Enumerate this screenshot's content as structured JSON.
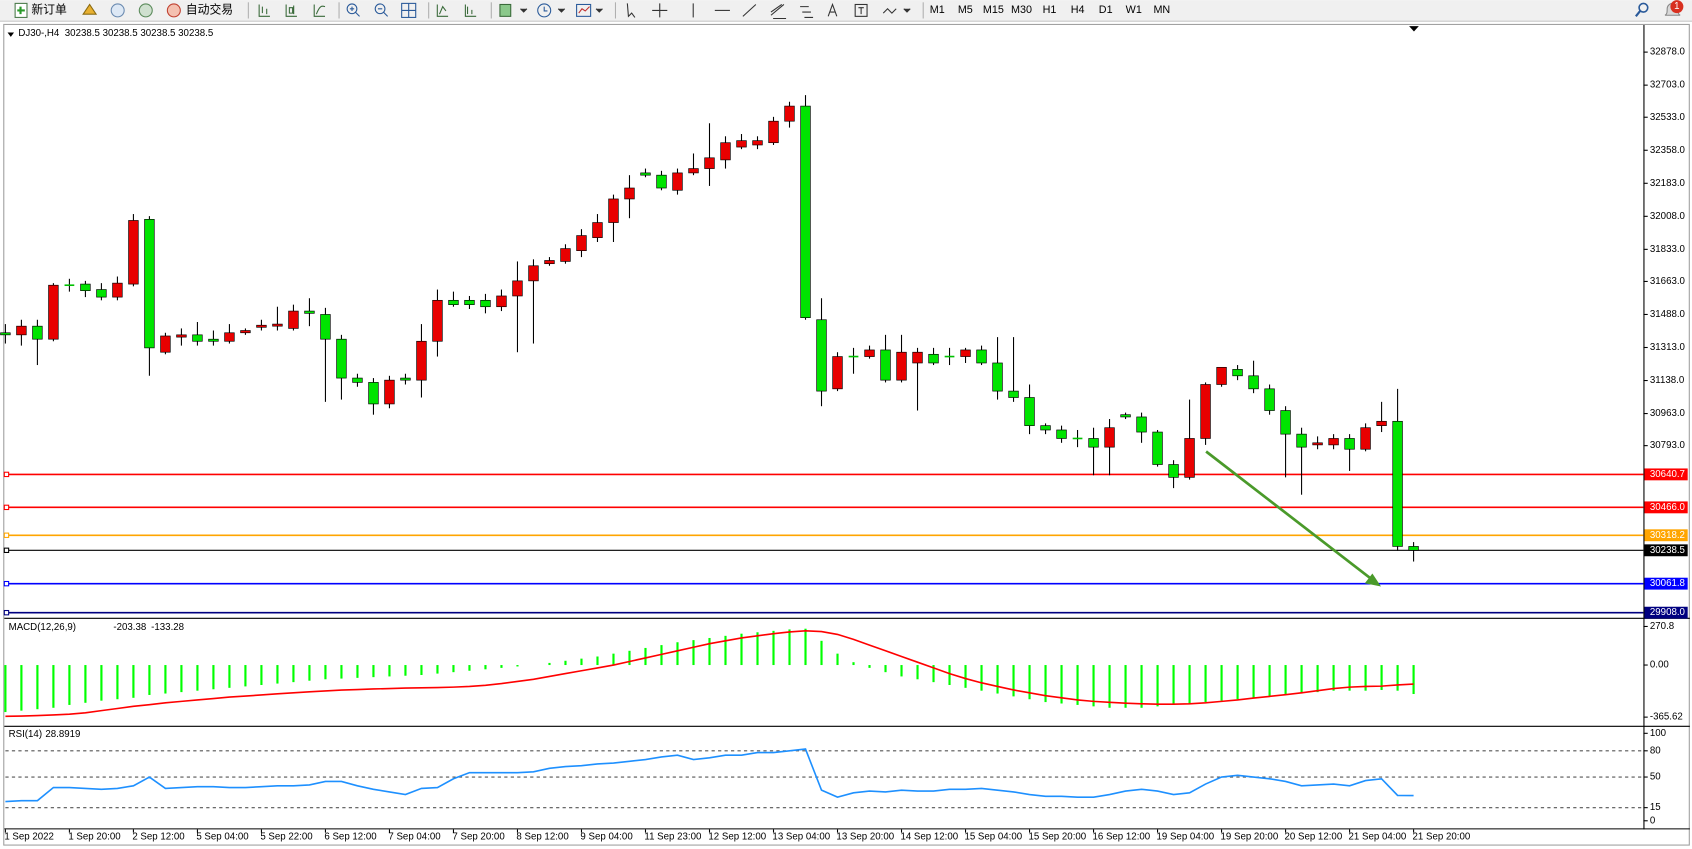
{
  "toolbar": {
    "buttons": [
      "新订单",
      "自动交易"
    ],
    "timeframes": [
      "M1",
      "M5",
      "M15",
      "M30",
      "H1",
      "H4",
      "D1",
      "W1",
      "MN"
    ],
    "badge": "1"
  },
  "chart_data": [
    {
      "type": "candlestick",
      "title": "DJ30-,H4",
      "quote": [
        30238.5,
        30238.5,
        30238.5,
        30238.5
      ],
      "up_color": "#e80000",
      "down_color": "#00e400",
      "x_labels": [
        "1 Sep 2022",
        "1 Sep 20:00",
        "2 Sep 12:00",
        "5 Sep 04:00",
        "5 Sep 22:00",
        "6 Sep 12:00",
        "7 Sep 04:00",
        "7 Sep 20:00",
        "8 Sep 12:00",
        "9 Sep 04:00",
        "11 Sep 23:00",
        "12 Sep 12:00",
        "13 Sep 04:00",
        "13 Sep 20:00",
        "14 Sep 12:00",
        "15 Sep 04:00",
        "15 Sep 20:00",
        "16 Sep 12:00",
        "19 Sep 04:00",
        "19 Sep 20:00",
        "20 Sep 12:00",
        "21 Sep 04:00",
        "21 Sep 20:00"
      ],
      "open": [
        31391,
        31380,
        31426,
        31357,
        31643,
        31649,
        31620,
        31580,
        31649,
        31992,
        31288,
        31368,
        31380,
        31357,
        31346,
        31391,
        31420,
        31426,
        31414,
        31506,
        31488,
        31357,
        31151,
        31128,
        31014,
        31151,
        31140,
        31346,
        31563,
        31563,
        31563,
        31529,
        31586,
        31666,
        31757,
        31769,
        31826,
        31895,
        31975,
        32100,
        32238,
        32226,
        32146,
        32238,
        32261,
        32307,
        32375,
        32386,
        32398,
        32512,
        32592,
        31460,
        31094,
        31265,
        31265,
        31300,
        31140,
        31231,
        31277,
        31265,
        31265,
        31300,
        31231,
        31082,
        31048,
        30899,
        30876,
        30831,
        30831,
        30785,
        30957,
        30945,
        30865,
        30693,
        30625,
        30831,
        31117,
        31197,
        31163,
        31094,
        30979,
        30854,
        30797,
        30797,
        30831,
        30774,
        30899,
        30922,
        30259
      ],
      "high": [
        31437,
        31460,
        31460,
        31654,
        31677,
        31666,
        31654,
        31689,
        32020,
        32009,
        31391,
        31414,
        31448,
        31403,
        31437,
        31414,
        31460,
        31529,
        31540,
        31574,
        31523,
        31380,
        31174,
        31151,
        31163,
        31174,
        31437,
        31620,
        31609,
        31586,
        31597,
        31620,
        31769,
        31780,
        31792,
        31860,
        31940,
        32020,
        32123,
        32226,
        32261,
        32249,
        32261,
        32341,
        32501,
        32432,
        32444,
        32432,
        32535,
        32615,
        32650,
        31574,
        31288,
        31311,
        31323,
        31380,
        31380,
        31311,
        31311,
        31311,
        31311,
        31323,
        31368,
        31368,
        31117,
        30911,
        30899,
        30876,
        30888,
        30934,
        30968,
        30968,
        30876,
        30716,
        31037,
        31128,
        31208,
        31220,
        31243,
        31117,
        31002,
        30888,
        30842,
        30854,
        30854,
        30911,
        31025,
        31094,
        30282
      ],
      "low": [
        31334,
        31323,
        31220,
        31346,
        31609,
        31580,
        31563,
        31563,
        31637,
        31163,
        31277,
        31323,
        31323,
        31323,
        31334,
        31380,
        31403,
        31403,
        31403,
        31426,
        31025,
        31037,
        31105,
        30957,
        30991,
        31117,
        31048,
        31265,
        31529,
        31517,
        31494,
        31506,
        31288,
        31334,
        31746,
        31757,
        31792,
        31872,
        31872,
        31998,
        32215,
        32146,
        32123,
        32226,
        32169,
        32261,
        32364,
        32364,
        32386,
        32478,
        31460,
        31002,
        31082,
        31174,
        31254,
        31128,
        31128,
        30979,
        31220,
        31220,
        31231,
        31220,
        31037,
        31025,
        30854,
        30854,
        30808,
        30785,
        30636,
        30636,
        30934,
        30808,
        30682,
        30568,
        30613,
        30797,
        31105,
        31140,
        31071,
        30957,
        30625,
        30533,
        30774,
        30774,
        30659,
        30763,
        30865,
        30236,
        30179
      ],
      "close": [
        31380,
        31426,
        31357,
        31643,
        31643,
        31614,
        31580,
        31654,
        31986,
        31311,
        31374,
        31380,
        31346,
        31346,
        31391,
        31403,
        31431,
        31437,
        31506,
        31494,
        31357,
        31151,
        31128,
        31014,
        31140,
        31140,
        31346,
        31563,
        31540,
        31540,
        31529,
        31586,
        31666,
        31746,
        31774,
        31837,
        31906,
        31975,
        32100,
        32158,
        32226,
        32158,
        32238,
        32261,
        32318,
        32398,
        32409,
        32409,
        32512,
        32592,
        31471,
        31082,
        31265,
        31265,
        31300,
        31140,
        31288,
        31288,
        31231,
        31265,
        31300,
        31231,
        31082,
        31048,
        30899,
        30876,
        30831,
        30831,
        30785,
        30888,
        30945,
        30865,
        30693,
        30625,
        30831,
        31117,
        31208,
        31163,
        31094,
        30979,
        30854,
        30785,
        30808,
        30831,
        30774,
        30888,
        30922,
        30259,
        30238.5
      ],
      "ylim": [
        29881,
        33016
      ],
      "yticks": [
        {
          "value": 32878,
          "label": "32878.0"
        },
        {
          "value": 32703,
          "label": "32703.0"
        },
        {
          "value": 32533,
          "label": "32533.0"
        },
        {
          "value": 32358,
          "label": "32358.0"
        },
        {
          "value": 32183,
          "label": "32183.0"
        },
        {
          "value": 32008,
          "label": "32008.0"
        },
        {
          "value": 31833,
          "label": "31833.0"
        },
        {
          "value": 31663,
          "label": "31663.0"
        },
        {
          "value": 31488,
          "label": "31488.0"
        },
        {
          "value": 31313,
          "label": "31313.0"
        },
        {
          "value": 31138,
          "label": "31138.0"
        },
        {
          "value": 30963,
          "label": "30963.0"
        },
        {
          "value": 30793,
          "label": "30793.0"
        }
      ],
      "levels": [
        {
          "value": 30640.7,
          "color": "#ff0000"
        },
        {
          "value": {
            "value": 30466,
            "label": "30466.0"
          },
          "color": "#ff0000"
        },
        {
          "value": 30318.2,
          "color": "#ffa500"
        },
        {
          "value": 30238.5,
          "color": "#000000"
        },
        {
          "value": 30061.8,
          "color": "#0000ff"
        },
        {
          "value": {
            "value": 29908,
            "label": "29908.0"
          },
          "color": "#000080"
        }
      ]
    },
    {
      "type": "macd",
      "title": "MACD(12,26,9)",
      "ylim": [
        -411,
        309
      ],
      "yticks": [
        270.8,
        {
          "value": 0,
          "label": "0.00"
        },
        -365.62
      ],
      "series": [
        {
          "name": "main",
          "color": "#00ff00",
          "values": [
            -330,
            -320,
            -310,
            -300,
            -280,
            -265,
            -250,
            -240,
            -230,
            -210,
            -200,
            -190,
            -180,
            -170,
            -160,
            -150,
            -140,
            -130,
            -120,
            -110,
            -100,
            -95,
            -90,
            -85,
            -80,
            -75,
            -70,
            -60,
            -50,
            -40,
            -30,
            -20,
            -10,
            0,
            15,
            30,
            45,
            60,
            80,
            100,
            120,
            140,
            160,
            175,
            190,
            205,
            220,
            230,
            240,
            250,
            255,
            170,
            80,
            20,
            -20,
            -50,
            -80,
            -100,
            -120,
            -140,
            -160,
            -180,
            -200,
            -220,
            -240,
            -260,
            -270,
            -280,
            -290,
            -300,
            -300,
            -300,
            -290,
            -280,
            -270,
            -260,
            -250,
            -240,
            -230,
            -220,
            -210,
            -200,
            -190,
            -180,
            -180,
            -180,
            -175,
            -180,
            -203.38
          ]
        },
        {
          "name": "signal",
          "color": "#ff0000",
          "values": [
            -360,
            -358,
            -355,
            -350,
            -345,
            -335,
            -320,
            -305,
            -290,
            -278,
            -265,
            -255,
            -245,
            -235,
            -225,
            -218,
            -210,
            -202,
            -195,
            -188,
            -182,
            -176,
            -172,
            -168,
            -165,
            -162,
            -160,
            -158,
            -155,
            -150,
            -142,
            -130,
            -115,
            -100,
            -80,
            -60,
            -40,
            -20,
            0,
            25,
            50,
            75,
            100,
            125,
            150,
            170,
            190,
            205,
            220,
            232,
            240,
            235,
            215,
            180,
            140,
            100,
            60,
            20,
            -20,
            -60,
            -95,
            -125,
            -150,
            -175,
            -195,
            -215,
            -230,
            -245,
            -255,
            -262,
            -268,
            -272,
            -275,
            -275,
            -272,
            -265,
            -255,
            -245,
            -232,
            -220,
            -208,
            -195,
            -180,
            -165,
            -155,
            -150,
            -148,
            -140,
            -133.28
          ]
        }
      ]
    },
    {
      "type": "rsi",
      "title": "RSI(14)",
      "ylim": [
        0,
        100
      ],
      "yticks": [
        100,
        80,
        50,
        15,
        0
      ],
      "levels": [
        80,
        50,
        15
      ],
      "color": "#1e90ff",
      "values": [
        22,
        23,
        23,
        38,
        38,
        37,
        36,
        37,
        40,
        50,
        37,
        38,
        39,
        39,
        38,
        38,
        39,
        40,
        40,
        41,
        45,
        45,
        40,
        36,
        33,
        30,
        37,
        38,
        48,
        55,
        55,
        55,
        55,
        56,
        60,
        62,
        63,
        65,
        66,
        68,
        70,
        73,
        75,
        70,
        72,
        75,
        75,
        78,
        78,
        80,
        82,
        35,
        27,
        32,
        34,
        33,
        35,
        34,
        34,
        36,
        36,
        37,
        35,
        33,
        30,
        28,
        28,
        27,
        27,
        30,
        34,
        36,
        34,
        30,
        32,
        42,
        50,
        52,
        50,
        48,
        45,
        40,
        41,
        42,
        40,
        46,
        48,
        29,
        28.8919
      ]
    }
  ]
}
